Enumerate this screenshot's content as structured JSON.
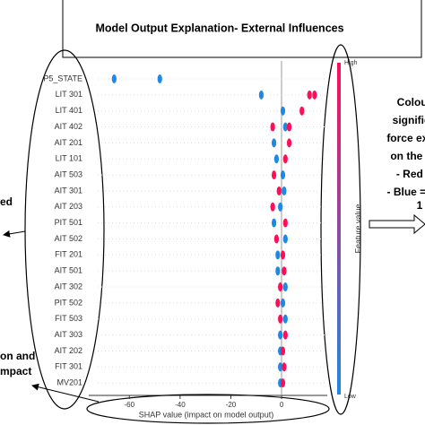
{
  "chart_data": {
    "type": "beeswarm",
    "title": "Model Output Explanation- External Influences",
    "x_label": "SHAP value (impact on model output)",
    "colorbar_label": "Feature value",
    "colorbar_high": "High",
    "colorbar_low": "Low",
    "categories": [
      "P5_STATE",
      "LIT 301",
      "LIT 401",
      "AIT 402",
      "AIT 201",
      "LIT 101",
      "AIT 503",
      "AIT 301",
      "AIT 203",
      "PIT 501",
      "AIT 502",
      "FIT 201",
      "AIT 501",
      "AIT 302",
      "PIT 502",
      "FIT 503",
      "AIT 303",
      "AIT 202",
      "FIT 301",
      "MV201"
    ],
    "series": [
      {
        "color": "#1e88e5",
        "values": [
          [
            -66,
            -48
          ],
          [
            -8
          ],
          [
            0.5
          ],
          [
            1.5
          ],
          [
            -3
          ],
          [
            -2
          ],
          [
            0.5
          ],
          [
            1
          ],
          [
            -0.5
          ],
          [
            -3
          ],
          [
            1.5
          ],
          [
            -1.5
          ],
          [
            -1.5
          ],
          [
            1.5
          ],
          [
            0.5
          ],
          [
            1.5
          ],
          [
            -0.5
          ],
          [
            -0.5
          ],
          [
            -0.5
          ],
          [
            -0.5
          ]
        ]
      },
      {
        "color": "#ff0d57",
        "values": [
          [],
          [
            11,
            13
          ],
          [
            8
          ],
          [
            -3.5,
            3
          ],
          [
            3
          ],
          [
            1.5
          ],
          [
            -3
          ],
          [
            -1
          ],
          [
            -3.5
          ],
          [
            1.5
          ],
          [
            -2
          ],
          [
            0.5
          ],
          [
            1
          ],
          [
            -0.5
          ],
          [
            -1.5
          ],
          [
            -0.5
          ],
          [
            1.5
          ],
          [
            0.5
          ],
          [
            1
          ],
          [
            0.5
          ]
        ]
      }
    ],
    "xlim": [
      -76,
      18
    ],
    "xticks": [
      -60,
      -40,
      -20,
      0
    ],
    "annotations_right": [
      "Colour",
      "signifies",
      "force exert",
      "on the su",
      "- Red =",
      "- Blue = de",
      "1"
    ],
    "annotations_left": [
      "ed",
      "on and",
      "mpact"
    ]
  }
}
